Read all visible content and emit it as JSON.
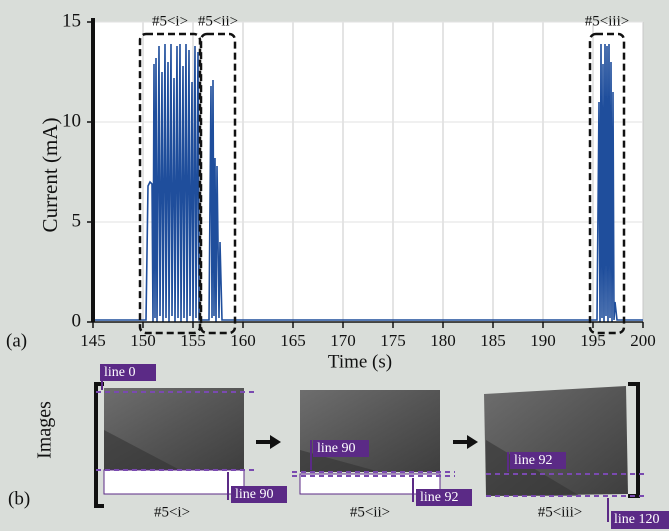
{
  "chart_data": {
    "type": "line",
    "tag": "(a)",
    "xlabel": "Time (s)",
    "ylabel": "Current (mA)",
    "x": [
      145,
      150.3,
      150.5,
      150.7,
      150.9,
      151.0,
      151.1,
      151.2,
      151.3,
      151.4,
      151.6,
      151.7,
      151.9,
      152.0,
      152.2,
      152.3,
      152.5,
      152.6,
      152.8,
      152.9,
      153.1,
      153.2,
      153.4,
      153.5,
      153.7,
      153.8,
      154.0,
      154.1,
      154.3,
      154.4,
      154.6,
      154.7,
      154.9,
      155.0,
      155.2,
      155.3,
      155.5,
      155.6,
      156.6,
      156.8,
      156.9,
      157.0,
      157.1,
      157.2,
      157.3,
      157.4,
      157.6,
      157.7,
      157.9,
      158.0,
      195.4,
      195.6,
      195.7,
      195.8,
      195.9,
      196.0,
      196.1,
      196.2,
      196.3,
      196.4,
      196.5,
      196.6,
      196.7,
      196.8,
      196.9,
      197.0,
      197.1,
      197.2,
      197.4,
      200
    ],
    "values": [
      0.1,
      0.1,
      6.8,
      7.0,
      6.9,
      0,
      12.9,
      0.2,
      13.2,
      0,
      13.8,
      0.3,
      12.5,
      0,
      13.9,
      0.2,
      13.0,
      0,
      13.9,
      0.3,
      12.2,
      0,
      13.8,
      0.2,
      13.9,
      0,
      12.8,
      0.2,
      13.9,
      0,
      13.6,
      0.3,
      12.0,
      0,
      13.8,
      0.2,
      13.5,
      0.1,
      0.1,
      11.8,
      0.2,
      12.1,
      0.3,
      8.2,
      0,
      7.8,
      0.2,
      4.0,
      0.1,
      0.1,
      0.1,
      11.0,
      0,
      13.9,
      0.2,
      12.9,
      0,
      13.9,
      0.3,
      13.8,
      0,
      13.9,
      0.2,
      13.0,
      0,
      11.5,
      0.1,
      1.0,
      0.1,
      0.1
    ],
    "color": "#1f4e9c",
    "xlim": [
      145,
      200
    ],
    "xticks": [
      145,
      150,
      155,
      160,
      165,
      170,
      175,
      180,
      185,
      190,
      195,
      200
    ],
    "ylim": [
      0,
      15
    ],
    "yticks": [
      0,
      5,
      10,
      15
    ],
    "grid": true,
    "regions": [
      {
        "label": "#5<i>",
        "xlim": [
          149.7,
          155.7
        ]
      },
      {
        "label": "#5<ii>",
        "xlim": [
          155.8,
          159.2
        ]
      },
      {
        "label": "#5<iii>",
        "xlim": [
          194.7,
          198.1
        ]
      }
    ]
  },
  "images_panel": {
    "label": "Images",
    "tag": "(b)",
    "panels": [
      {
        "caption": "#5<i>",
        "top_label": "line 0",
        "bottom_label": "line 90"
      },
      {
        "caption": "#5<ii>",
        "top_label": "line 90",
        "bottom_label": "line 92"
      },
      {
        "caption": "#5<iii>",
        "top_label": "line 92",
        "bottom_label": "line 120"
      }
    ]
  }
}
